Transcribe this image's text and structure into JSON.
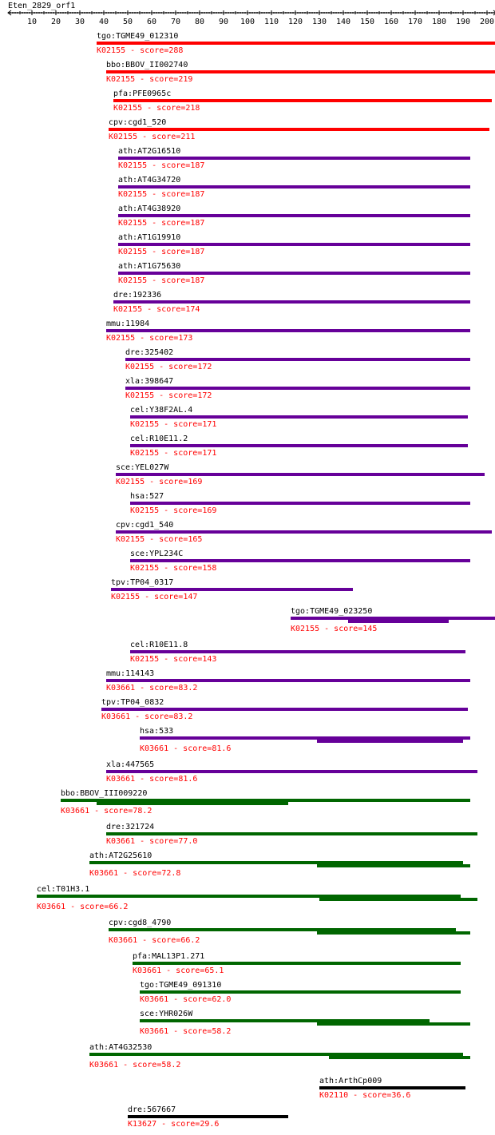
{
  "query": {
    "name": "Eten_2829_orf1",
    "length": 204
  },
  "axis": {
    "ticks": [
      10,
      20,
      30,
      40,
      50,
      60,
      70,
      80,
      90,
      100,
      110,
      120,
      130,
      140,
      150,
      160,
      170,
      180,
      190,
      200
    ]
  },
  "colors": {
    "red": "#ff0000",
    "purple": "#660099",
    "green": "#006600",
    "black": "#000000",
    "score_text": "#ff0000",
    "label_text": "#000000"
  },
  "hits": [
    {
      "gene": "tgo:TGME49_012310",
      "ko": "K02155",
      "score": "288",
      "color": "red",
      "segs": [
        [
          37,
          204
        ]
      ]
    },
    {
      "gene": "bbo:BBOV_II002740",
      "ko": "K02155",
      "score": "219",
      "color": "red",
      "segs": [
        [
          41,
          204
        ]
      ]
    },
    {
      "gene": "pfa:PFE0965c",
      "ko": "K02155",
      "score": "218",
      "color": "red",
      "segs": [
        [
          44,
          202
        ]
      ]
    },
    {
      "gene": "cpv:cgd1_520",
      "ko": "K02155",
      "score": "211",
      "color": "red",
      "segs": [
        [
          42,
          201
        ]
      ]
    },
    {
      "gene": "ath:AT2G16510",
      "ko": "K02155",
      "score": "187",
      "color": "purple",
      "segs": [
        [
          46,
          193
        ]
      ]
    },
    {
      "gene": "ath:AT4G34720",
      "ko": "K02155",
      "score": "187",
      "color": "purple",
      "segs": [
        [
          46,
          193
        ]
      ]
    },
    {
      "gene": "ath:AT4G38920",
      "ko": "K02155",
      "score": "187",
      "color": "purple",
      "segs": [
        [
          46,
          193
        ]
      ]
    },
    {
      "gene": "ath:AT1G19910",
      "ko": "K02155",
      "score": "187",
      "color": "purple",
      "segs": [
        [
          46,
          193
        ]
      ]
    },
    {
      "gene": "ath:AT1G75630",
      "ko": "K02155",
      "score": "187",
      "color": "purple",
      "segs": [
        [
          46,
          193
        ]
      ]
    },
    {
      "gene": "dre:192336",
      "ko": "K02155",
      "score": "174",
      "color": "purple",
      "segs": [
        [
          44,
          193
        ]
      ]
    },
    {
      "gene": "mmu:11984",
      "ko": "K02155",
      "score": "173",
      "color": "purple",
      "segs": [
        [
          41,
          193
        ]
      ]
    },
    {
      "gene": "dre:325402",
      "ko": "K02155",
      "score": "172",
      "color": "purple",
      "segs": [
        [
          49,
          193
        ]
      ]
    },
    {
      "gene": "xla:398647",
      "ko": "K02155",
      "score": "172",
      "color": "purple",
      "segs": [
        [
          49,
          193
        ]
      ]
    },
    {
      "gene": "cel:Y38F2AL.4",
      "ko": "K02155",
      "score": "171",
      "color": "purple",
      "segs": [
        [
          51,
          192
        ]
      ]
    },
    {
      "gene": "cel:R10E11.2",
      "ko": "K02155",
      "score": "171",
      "color": "purple",
      "segs": [
        [
          51,
          192
        ]
      ]
    },
    {
      "gene": "sce:YEL027W",
      "ko": "K02155",
      "score": "169",
      "color": "purple",
      "segs": [
        [
          45,
          199
        ]
      ]
    },
    {
      "gene": "hsa:527",
      "ko": "K02155",
      "score": "169",
      "color": "purple",
      "segs": [
        [
          51,
          193
        ]
      ]
    },
    {
      "gene": "cpv:cgd1_540",
      "ko": "K02155",
      "score": "165",
      "color": "purple",
      "segs": [
        [
          45,
          202
        ]
      ]
    },
    {
      "gene": "sce:YPL234C",
      "ko": "K02155",
      "score": "158",
      "color": "purple",
      "segs": [
        [
          51,
          193
        ]
      ]
    },
    {
      "gene": "tpv:TP04_0317",
      "ko": "K02155",
      "score": "147",
      "color": "purple",
      "segs": [
        [
          43,
          144
        ]
      ]
    },
    {
      "gene": "tgo:TGME49_023250",
      "ko": "K02155",
      "score": "145",
      "color": "purple",
      "segs": [
        [
          118,
          204
        ],
        [
          142,
          184
        ]
      ]
    },
    {
      "gene": "cel:R10E11.8",
      "ko": "K02155",
      "score": "143",
      "color": "purple",
      "segs": [
        [
          51,
          191
        ]
      ]
    },
    {
      "gene": "mmu:114143",
      "ko": "K03661",
      "score": "83.2",
      "color": "purple",
      "segs": [
        [
          41,
          193
        ]
      ]
    },
    {
      "gene": "tpv:TP04_0832",
      "ko": "K03661",
      "score": "83.2",
      "color": "purple",
      "segs": [
        [
          39,
          192
        ]
      ]
    },
    {
      "gene": "hsa:533",
      "ko": "K03661",
      "score": "81.6",
      "color": "purple",
      "segs": [
        [
          55,
          193
        ],
        [
          129,
          190
        ]
      ]
    },
    {
      "gene": "xla:447565",
      "ko": "K03661",
      "score": "81.6",
      "color": "purple",
      "segs": [
        [
          41,
          196
        ]
      ]
    },
    {
      "gene": "bbo:BBOV_III009220",
      "ko": "K03661",
      "score": "78.2",
      "color": "green",
      "segs": [
        [
          22,
          193
        ],
        [
          37,
          117
        ]
      ]
    },
    {
      "gene": "dre:321724",
      "ko": "K03661",
      "score": "77.0",
      "color": "green",
      "segs": [
        [
          41,
          196
        ]
      ]
    },
    {
      "gene": "ath:AT2G25610",
      "ko": "K03661",
      "score": "72.8",
      "color": "green",
      "segs": [
        [
          34,
          190
        ],
        [
          129,
          193
        ]
      ]
    },
    {
      "gene": "cel:T01H3.1",
      "ko": "K03661",
      "score": "66.2",
      "color": "green",
      "segs": [
        [
          12,
          189
        ],
        [
          130,
          196
        ]
      ]
    },
    {
      "gene": "cpv:cgd8_4790",
      "ko": "K03661",
      "score": "66.2",
      "color": "green",
      "segs": [
        [
          42,
          187
        ],
        [
          129,
          193
        ]
      ]
    },
    {
      "gene": "pfa:MAL13P1.271",
      "ko": "K03661",
      "score": "65.1",
      "color": "green",
      "segs": [
        [
          52,
          189
        ]
      ]
    },
    {
      "gene": "tgo:TGME49_091310",
      "ko": "K03661",
      "score": "62.0",
      "color": "green",
      "segs": [
        [
          55,
          189
        ]
      ]
    },
    {
      "gene": "sce:YHR026W",
      "ko": "K03661",
      "score": "58.2",
      "color": "green",
      "segs": [
        [
          55,
          176
        ],
        [
          129,
          193
        ]
      ]
    },
    {
      "gene": "ath:AT4G32530",
      "ko": "K03661",
      "score": "58.2",
      "color": "green",
      "segs": [
        [
          34,
          190
        ],
        [
          134,
          193
        ]
      ]
    },
    {
      "gene": "ath:ArthCp009",
      "ko": "K02110",
      "score": "36.6",
      "color": "black",
      "segs": [
        [
          130,
          191
        ]
      ]
    },
    {
      "gene": "dre:567667",
      "ko": "K13627",
      "score": "29.6",
      "color": "black",
      "segs": [
        [
          50,
          117
        ]
      ]
    }
  ]
}
